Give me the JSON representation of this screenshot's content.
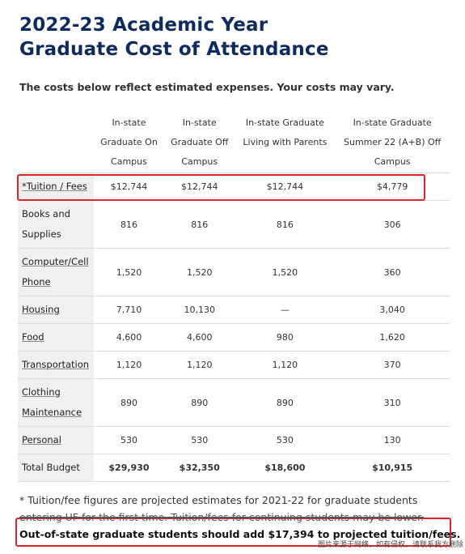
{
  "title_line1": "2022-23 Academic Year",
  "title_line2": "Graduate Cost of Attendance",
  "subtitle": "The costs below reflect estimated expenses.  Your costs may vary.",
  "columns": [
    [
      "In-state",
      "Graduate On",
      "Campus"
    ],
    [
      "In-state",
      "Graduate Off",
      "Campus"
    ],
    [
      "In-state Graduate",
      "Living with Parents",
      ""
    ],
    [
      "In-state Graduate",
      "Summer 22 (A+B) Off",
      "Campus"
    ]
  ],
  "rows": [
    {
      "label": [
        "*Tuition / Fees"
      ],
      "values": [
        "$12,744",
        "$12,744",
        "$12,744",
        "$4,779"
      ]
    },
    {
      "label": [
        "Books and",
        "Supplies"
      ],
      "values": [
        "816",
        "816",
        "816",
        "306"
      ]
    },
    {
      "label": [
        "Computer/Cell",
        "Phone"
      ],
      "values": [
        "1,520",
        "1,520",
        "1,520",
        "360"
      ]
    },
    {
      "label": [
        "Housing"
      ],
      "values": [
        "7,710",
        "10,130",
        "—",
        "3,040"
      ]
    },
    {
      "label": [
        "Food"
      ],
      "values": [
        "4,600",
        "4,600",
        "980",
        "1,620"
      ]
    },
    {
      "label": [
        "Transportation"
      ],
      "values": [
        "1,120",
        "1,120",
        "1,120",
        "370"
      ]
    },
    {
      "label": [
        "Clothing",
        "Maintenance"
      ],
      "values": [
        "890",
        "890",
        "890",
        "310"
      ]
    },
    {
      "label": [
        "Personal"
      ],
      "values": [
        "530",
        "530",
        "530",
        "130"
      ]
    },
    {
      "label": [
        "Total Budget"
      ],
      "values": [
        "$29,930",
        "$32,350",
        "$18,600",
        "$10,915"
      ]
    }
  ],
  "footnote_line1": "* Tuition/fee figures are projected estimates for 2021-22 for graduate students",
  "footnote_line2": "entering UF for the first time. Tuition/fees for continuing students may be lower.",
  "outstate_note": "Out-of-state graduate students should add $17,394 to projected tuition/fees.",
  "watermark": "图片来源于网络，如有侵权，请联系我方删除"
}
